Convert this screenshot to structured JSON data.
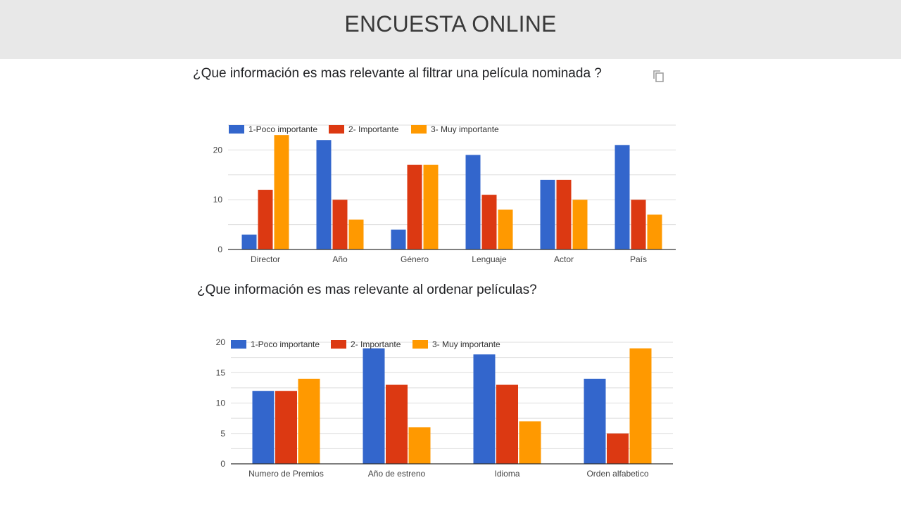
{
  "header": {
    "title": "ENCUESTA ONLINE"
  },
  "icons": {
    "copy": "copy-icon"
  },
  "colors": {
    "blue": "#3366cc",
    "red": "#dc3912",
    "orange": "#ff9900",
    "grid": "#dddddd",
    "axis": "#333333"
  },
  "chart_data": [
    {
      "type": "bar",
      "title": "¿Que información es mas relevante al filtrar una película nominada ?",
      "categories": [
        "Director",
        "Año",
        "Género",
        "Lenguaje",
        "Actor",
        "País"
      ],
      "series": [
        {
          "name": "1-Poco importante",
          "values": [
            3,
            22,
            4,
            19,
            14,
            21
          ]
        },
        {
          "name": "2- Importante",
          "values": [
            12,
            10,
            17,
            11,
            14,
            10
          ]
        },
        {
          "name": "3- Muy importante",
          "values": [
            23,
            6,
            17,
            8,
            10,
            7
          ]
        }
      ],
      "ylim": [
        0,
        25
      ],
      "yticks": [
        0,
        10,
        20
      ],
      "grid": true,
      "legend": "top-left"
    },
    {
      "type": "bar",
      "title": "¿Que información es mas relevante al ordenar películas?",
      "categories": [
        "Numero de Premios",
        "Año de estreno",
        "Idioma",
        "Orden alfabetico"
      ],
      "series": [
        {
          "name": "1-Poco importante",
          "values": [
            12,
            19,
            18,
            14
          ]
        },
        {
          "name": "2- Importante",
          "values": [
            12,
            13,
            13,
            5
          ]
        },
        {
          "name": "3- Muy importante",
          "values": [
            14,
            6,
            7,
            19
          ]
        }
      ],
      "ylim": [
        0,
        20
      ],
      "yticks": [
        0,
        5,
        10,
        15,
        20
      ],
      "grid": true,
      "legend": "top-left"
    }
  ]
}
